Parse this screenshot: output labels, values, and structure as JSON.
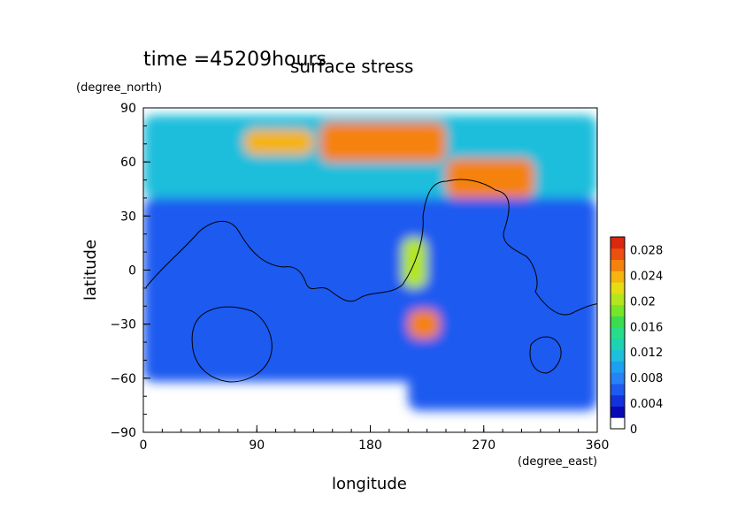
{
  "chart_data": {
    "type": "heatmap",
    "title": "surface stress",
    "time_label": "time =45209hours",
    "xlabel": "longitude",
    "ylabel": "latitude",
    "xunit": "(degree_east)",
    "yunit": "(degree_north)",
    "xlim": [
      0,
      360
    ],
    "ylim": [
      -90,
      90
    ],
    "xticks": [
      "0",
      "90",
      "180",
      "270",
      "360"
    ],
    "yticks": [
      "90",
      "60",
      "30",
      "0",
      "−30",
      "−60",
      "−90"
    ],
    "colorbar": {
      "min": 0,
      "max": 0.03,
      "tick_labels": [
        "0",
        "0.004",
        "0.008",
        "0.012",
        "0.016",
        "0.02",
        "0.024",
        "0.028"
      ],
      "colors": [
        "#ffffff",
        "#0a0ab4",
        "#1432dc",
        "#1e5af0",
        "#2882f5",
        "#1ea0f0",
        "#1ebedc",
        "#1ed2b4",
        "#28dc8c",
        "#3cdc50",
        "#78e628",
        "#b4e61e",
        "#e6dc14",
        "#f5b40f",
        "#f5820f",
        "#eb500f",
        "#dc280f"
      ]
    },
    "regions": [
      {
        "name": "high-lat-north-band",
        "lon": [
          0,
          360
        ],
        "lat": [
          40,
          86
        ],
        "level": 6
      },
      {
        "name": "north-peak-1",
        "lon": [
          80,
          135
        ],
        "lat": [
          64,
          78
        ],
        "level": 13
      },
      {
        "name": "north-peak-2",
        "lon": [
          140,
          240
        ],
        "lat": [
          60,
          82
        ],
        "level": 14
      },
      {
        "name": "north-peak-3",
        "lon": [
          240,
          310
        ],
        "lat": [
          40,
          62
        ],
        "level": 14
      },
      {
        "name": "mid-band",
        "lon": [
          0,
          360
        ],
        "lat": [
          -62,
          40
        ],
        "level": 3
      },
      {
        "name": "southern-band",
        "lon": [
          210,
          360
        ],
        "lat": [
          -78,
          -40
        ],
        "level": 3
      },
      {
        "name": "spot-1",
        "lon": [
          210,
          235
        ],
        "lat": [
          -38,
          -22
        ],
        "level": 14
      },
      {
        "name": "spot-2",
        "lon": [
          205,
          225
        ],
        "lat": [
          -10,
          18
        ],
        "level": 11
      }
    ],
    "grid": false,
    "legend_position": "right"
  }
}
